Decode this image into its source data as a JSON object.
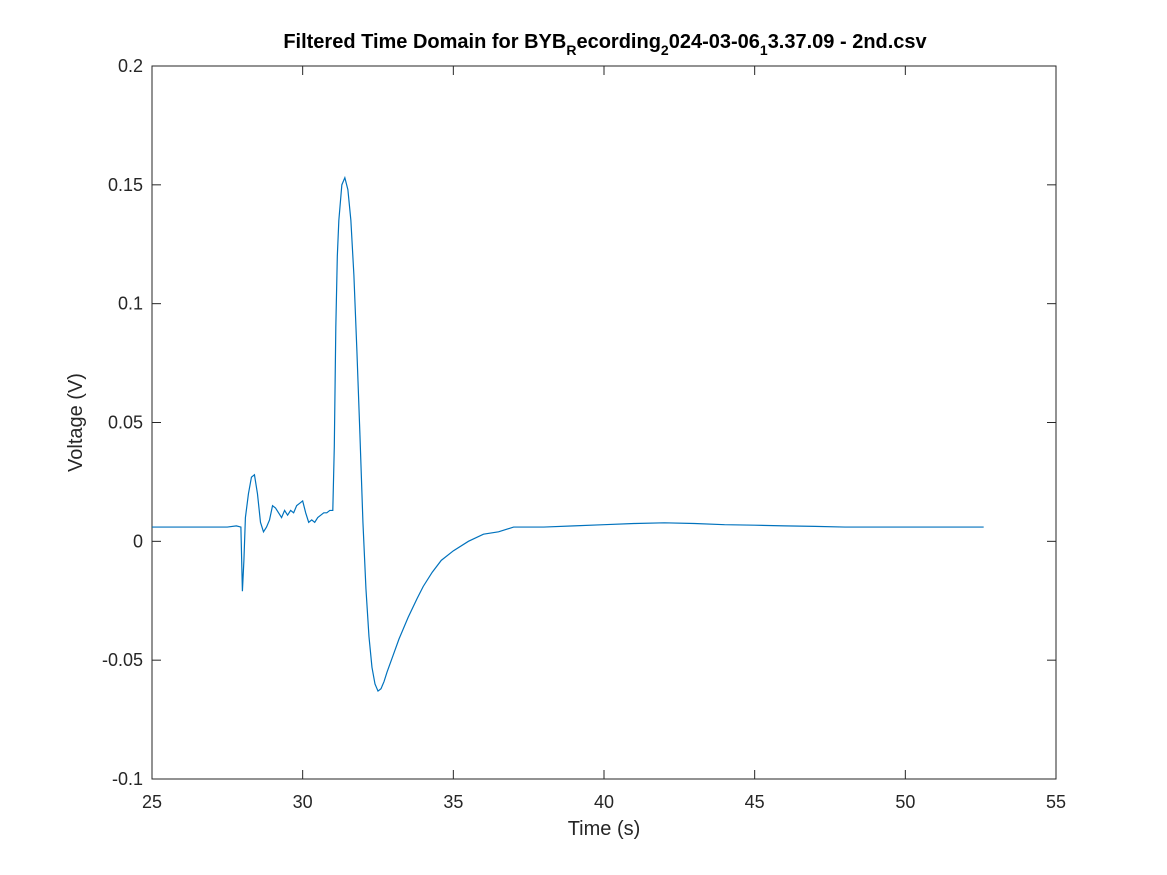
{
  "chart_data": {
    "type": "line",
    "title": {
      "parts": [
        {
          "text": "Filtered Time Domain for BYB",
          "sub": false
        },
        {
          "text": "R",
          "sub": true
        },
        {
          "text": "ecording",
          "sub": false
        },
        {
          "text": "2",
          "sub": true
        },
        {
          "text": "024-03-06",
          "sub": false
        },
        {
          "text": "1",
          "sub": true
        },
        {
          "text": "3.37.09 - 2nd.csv",
          "sub": false
        }
      ]
    },
    "xlabel": "Time (s)",
    "ylabel": "Voltage (V)",
    "xlim": [
      25,
      55
    ],
    "ylim": [
      -0.1,
      0.2
    ],
    "xticks": [
      25,
      30,
      35,
      40,
      45,
      50,
      55
    ],
    "xtick_labels": [
      "25",
      "30",
      "35",
      "40",
      "45",
      "50",
      "55"
    ],
    "yticks": [
      -0.1,
      -0.05,
      0,
      0.05,
      0.1,
      0.15,
      0.2
    ],
    "ytick_labels": [
      "-0.1",
      "-0.05",
      "0",
      "0.05",
      "0.1",
      "0.15",
      "0.2"
    ],
    "grid": false,
    "colors": {
      "line": "#0072BD",
      "axes": "#262626",
      "background": "#ffffff"
    },
    "series": [
      {
        "x": [
          25.0,
          26.5,
          27.5,
          27.8,
          27.95,
          28.0,
          28.05,
          28.1,
          28.2,
          28.3,
          28.4,
          28.5,
          28.6,
          28.7,
          28.8,
          28.9,
          29.0,
          29.1,
          29.2,
          29.3,
          29.4,
          29.5,
          29.6,
          29.7,
          29.8,
          29.9,
          30.0,
          30.1,
          30.2,
          30.3,
          30.4,
          30.5,
          30.6,
          30.7,
          30.8,
          30.9,
          31.0,
          31.05,
          31.1,
          31.15,
          31.2,
          31.3,
          31.4,
          31.5,
          31.6,
          31.7,
          31.8,
          31.9,
          32.0,
          32.1,
          32.2,
          32.3,
          32.4,
          32.5,
          32.6,
          32.7,
          32.8,
          33.0,
          33.2,
          33.5,
          33.8,
          34.0,
          34.3,
          34.6,
          35.0,
          35.5,
          36.0,
          36.5,
          37.0,
          37.5,
          38.0,
          39.0,
          40.0,
          41.0,
          42.0,
          43.0,
          44.0,
          45.0,
          46.0,
          47.0,
          48.0,
          49.0,
          50.0,
          51.0,
          52.0,
          52.6
        ],
        "y": [
          0.006,
          0.006,
          0.006,
          0.0065,
          0.006,
          -0.021,
          -0.008,
          0.01,
          0.02,
          0.027,
          0.028,
          0.02,
          0.008,
          0.004,
          0.006,
          0.009,
          0.015,
          0.014,
          0.012,
          0.01,
          0.013,
          0.011,
          0.013,
          0.012,
          0.015,
          0.016,
          0.017,
          0.012,
          0.008,
          0.009,
          0.008,
          0.01,
          0.011,
          0.012,
          0.012,
          0.013,
          0.013,
          0.04,
          0.09,
          0.12,
          0.135,
          0.15,
          0.153,
          0.148,
          0.135,
          0.112,
          0.08,
          0.045,
          0.008,
          -0.02,
          -0.04,
          -0.053,
          -0.06,
          -0.063,
          -0.062,
          -0.059,
          -0.055,
          -0.048,
          -0.041,
          -0.032,
          -0.024,
          -0.019,
          -0.013,
          -0.008,
          -0.004,
          0.0,
          0.003,
          0.004,
          0.006,
          0.006,
          0.006,
          0.0065,
          0.007,
          0.0075,
          0.0078,
          0.0075,
          0.007,
          0.0068,
          0.0065,
          0.0063,
          0.006,
          0.006,
          0.006,
          0.006,
          0.006,
          0.006
        ]
      }
    ]
  }
}
